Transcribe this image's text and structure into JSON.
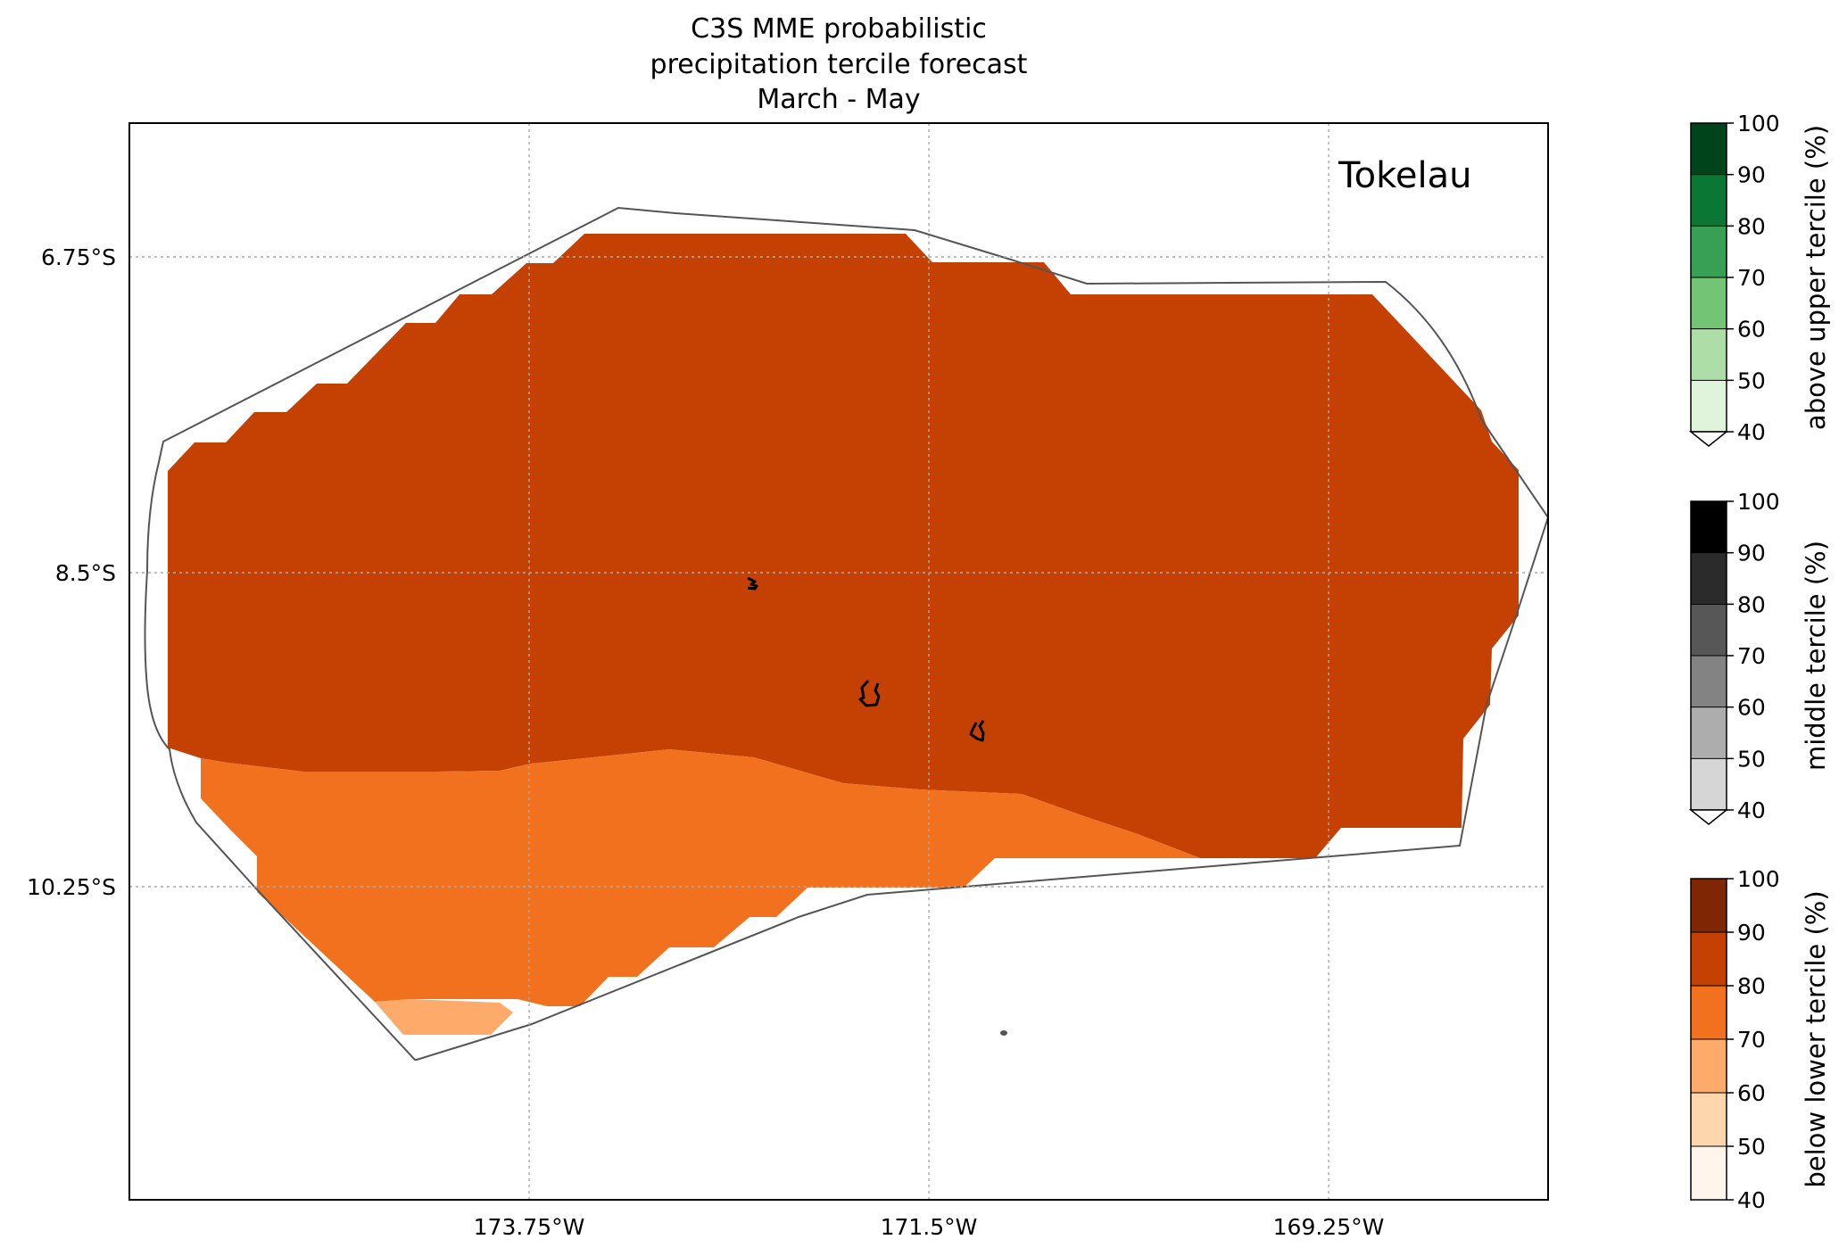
{
  "title": {
    "line1": "C3S MME probabilistic",
    "line2": "precipitation tercile forecast",
    "line3": "March - May"
  },
  "map": {
    "region_label": "Tokelau",
    "lon_ticks": [
      "173.75°W",
      "171.5°W",
      "169.25°W"
    ],
    "lat_ticks": [
      "6.75°S",
      "8.5°S",
      "10.25°S"
    ],
    "colors": {
      "frame": "#000000",
      "eez_boundary": "#555555",
      "gridline": "#aaaaaa",
      "below_70_80": "#f1711e",
      "below_80_90": "#c44103",
      "below_60_70": "#fdaa6a",
      "land": "#000000"
    },
    "forecast_category": "below lower tercile",
    "probability_bins_present": [
      "60-70",
      "70-80",
      "80-90"
    ]
  },
  "colorbars": [
    {
      "label": "above upper tercile (%)",
      "ticks": [
        "100",
        "90",
        "80",
        "70",
        "60",
        "50",
        "40"
      ],
      "colors": [
        "#00441b",
        "#0b7734",
        "#37a055",
        "#74c476",
        "#aedea7",
        "#e0f3db"
      ],
      "extend_min_color": "#ffffff"
    },
    {
      "label": "middle tercile (%)",
      "ticks": [
        "100",
        "90",
        "80",
        "70",
        "60",
        "50",
        "40"
      ],
      "colors": [
        "#000000",
        "#2b2b2b",
        "#575757",
        "#838383",
        "#adadad",
        "#d6d6d6"
      ],
      "extend_min_color": "#ffffff"
    },
    {
      "label": "below lower tercile (%)",
      "ticks": [
        "100",
        "90",
        "80",
        "70",
        "60",
        "50",
        "40"
      ],
      "colors": [
        "#7f2704",
        "#c44103",
        "#f1711e",
        "#fdaa6a",
        "#fdd6ae",
        "#fff5eb"
      ]
    }
  ]
}
